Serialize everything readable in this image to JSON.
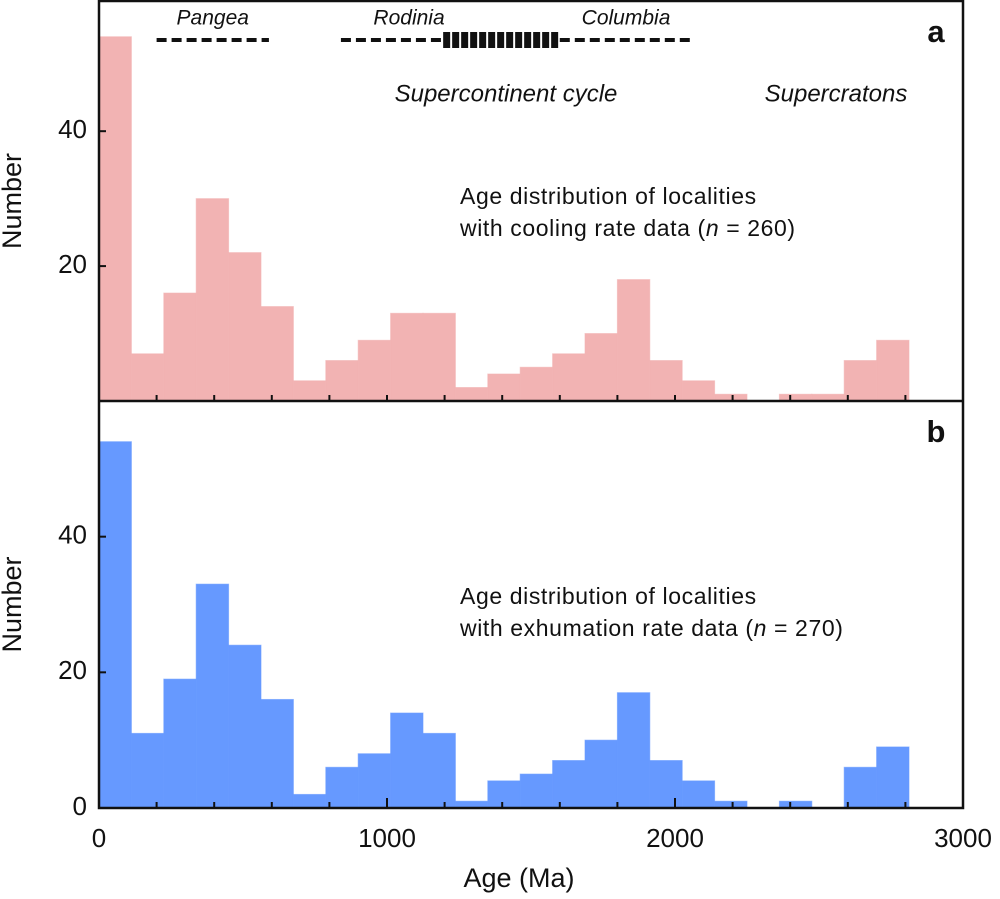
{
  "chart_data": [
    {
      "type": "histogram",
      "panel_label": "a",
      "ylabel": "Number",
      "bins": [
        0,
        112.5,
        225,
        337.5,
        450,
        562.5,
        675,
        787.5,
        900,
        1012.5,
        1125,
        1237.5,
        1350,
        1462.5,
        1575,
        1687.5,
        1800,
        1912.5,
        2025,
        2137.5,
        2250,
        2362.5,
        2475,
        2587.5,
        2700,
        2812.5
      ],
      "values": [
        54,
        7,
        16,
        30,
        22,
        14,
        3,
        6,
        9,
        13,
        13,
        2,
        4,
        5,
        7,
        10,
        18,
        6,
        3,
        1,
        0,
        1,
        1,
        6,
        9
      ],
      "color": "#f2b3b3",
      "xlim": [
        0,
        3000
      ],
      "x_minor_ticks": [
        200,
        400,
        600,
        800,
        1000,
        1200,
        1400,
        1600,
        1800,
        2000,
        2200,
        2400,
        2600,
        2800
      ],
      "ylim": [
        0,
        59.3
      ],
      "yticks": [
        20,
        40
      ],
      "supercontinents": [
        {
          "name": "Pangea",
          "span": [
            200,
            590
          ]
        },
        {
          "name": "Rodinia",
          "span": [
            840,
            1195
          ]
        },
        {
          "name": "Columbia",
          "span": [
            1600,
            2060
          ]
        }
      ],
      "transition_span": [
        1195,
        1600
      ],
      "notes": [
        "Supercontinent cycle",
        "Supercratons"
      ],
      "annotation": {
        "line1": "Age distribution of localities",
        "line2": [
          "with cooling rate data (",
          "n",
          " = 260)"
        ]
      }
    },
    {
      "type": "histogram",
      "panel_label": "b",
      "ylabel": "Number",
      "xlabel": "Age (Ma)",
      "bins": [
        0,
        112.5,
        225,
        337.5,
        450,
        562.5,
        675,
        787.5,
        900,
        1012.5,
        1125,
        1237.5,
        1350,
        1462.5,
        1575,
        1687.5,
        1800,
        1912.5,
        2025,
        2137.5,
        2250,
        2362.5,
        2475,
        2587.5,
        2700,
        2812.5
      ],
      "values": [
        54,
        11,
        19,
        33,
        24,
        16,
        2,
        6,
        8,
        14,
        11,
        1,
        4,
        5,
        7,
        10,
        17,
        7,
        4,
        1,
        0,
        1,
        0,
        6,
        9
      ],
      "color": "#6699ff",
      "xlim": [
        0,
        3000
      ],
      "xticks": [
        0,
        1000,
        2000,
        3000
      ],
      "x_minor_ticks": [
        200,
        400,
        600,
        800,
        1200,
        1400,
        1600,
        1800,
        2200,
        2400,
        2600,
        2800
      ],
      "ylim": [
        0,
        60
      ],
      "yticks": [
        0,
        20,
        40
      ],
      "annotation": {
        "line1": "Age distribution of localities",
        "line2": [
          "with exhumation rate data (",
          "n",
          " = 270)"
        ]
      }
    }
  ]
}
